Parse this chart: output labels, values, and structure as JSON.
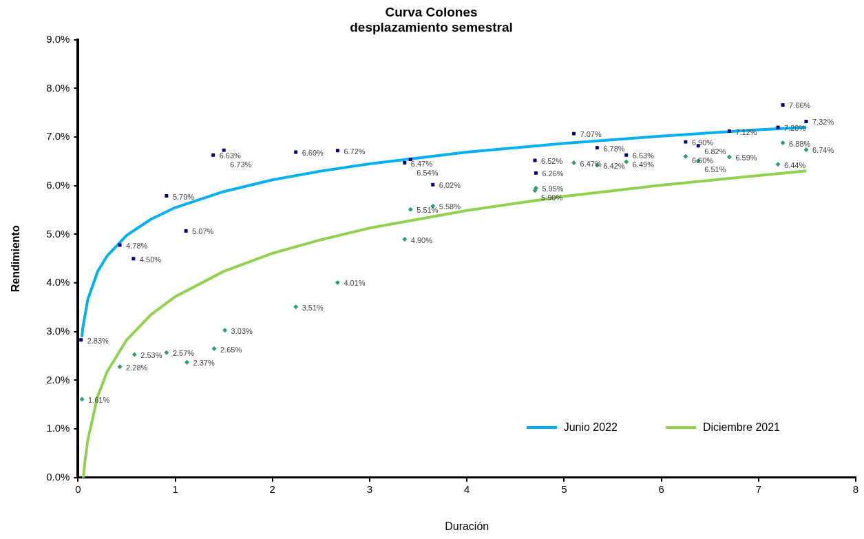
{
  "chart_data": {
    "type": "scatter",
    "title": "Curva Colones\ndesplazamiento semestral",
    "xlabel": "Duración",
    "ylabel": "Rendimiento",
    "xlim": [
      0,
      8
    ],
    "xticks": [
      0,
      1,
      2,
      3,
      4,
      5,
      6,
      7,
      8
    ],
    "ylim": [
      0,
      9
    ],
    "yticks": [
      {
        "value": 0,
        "label": "0.0%"
      },
      {
        "value": 1,
        "label": "1.0%"
      },
      {
        "value": 2,
        "label": "2.0%"
      },
      {
        "value": 3,
        "label": "3.0%"
      },
      {
        "value": 4,
        "label": "4.0%"
      },
      {
        "value": 5,
        "label": "5.0%"
      },
      {
        "value": 6,
        "label": "6.0%"
      },
      {
        "value": 7,
        "label": "7.0%"
      },
      {
        "value": 8,
        "label": "8.0%"
      },
      {
        "value": 9,
        "label": "9.0%"
      }
    ],
    "grid": false,
    "legend": "bottom right",
    "series": [
      {
        "type": "line",
        "name": "Junio 2022",
        "color": "#00b0f0",
        "marker": "none",
        "x": [
          0.04,
          0.05,
          0.1,
          0.2,
          0.3,
          0.5,
          0.75,
          1,
          1.5,
          2,
          2.5,
          3,
          4,
          5,
          6,
          7,
          7.48
        ],
        "values": [
          2.91,
          3.09,
          3.66,
          4.23,
          4.56,
          4.98,
          5.31,
          5.55,
          5.88,
          6.12,
          6.3,
          6.45,
          6.69,
          6.87,
          7.02,
          7.15,
          7.2
        ]
      },
      {
        "type": "line",
        "name": "Diciembre 2021",
        "color": "#92d050",
        "marker": "none",
        "x": [
          0.055,
          0.07,
          0.1,
          0.2,
          0.3,
          0.5,
          0.75,
          1,
          1.5,
          2,
          2.5,
          3,
          4,
          5,
          6,
          7,
          7.48
        ],
        "values": [
          0.0,
          0.32,
          0.77,
          1.66,
          2.18,
          2.83,
          3.35,
          3.72,
          4.24,
          4.61,
          4.89,
          5.13,
          5.49,
          5.78,
          6.01,
          6.21,
          6.3
        ]
      },
      {
        "type": "scatter",
        "color": "#000080",
        "marker": "square",
        "x": [
          0.03,
          0.43,
          0.57,
          0.91,
          1.11,
          1.39,
          1.5,
          2.24,
          2.67,
          3.36,
          3.42,
          3.65,
          4.7,
          4.71,
          5.1,
          5.34,
          5.64,
          6.25,
          6.38,
          6.7,
          7.2,
          7.25,
          7.49
        ],
        "values": [
          2.83,
          4.78,
          4.5,
          5.79,
          5.07,
          6.63,
          6.73,
          6.69,
          6.72,
          6.47,
          6.54,
          6.02,
          6.52,
          6.26,
          7.07,
          6.78,
          6.63,
          6.9,
          6.82,
          7.12,
          7.2,
          7.66,
          7.32
        ],
        "value_labels": [
          "2.83%",
          "4.78%",
          "4.50%",
          "5.79%",
          "5.07%",
          "6.63%",
          "6.73%",
          "6.69%",
          "6.72%",
          "6.47%",
          "6.54%",
          "6.02%",
          "6.52%",
          "6.26%",
          "7.07%",
          "6.78%",
          "6.63%",
          "6.90%",
          "6.82%",
          "7.12%",
          "7.20%",
          "7.66%",
          "7.32%"
        ]
      },
      {
        "type": "scatter",
        "color": "#2e9e6b",
        "marker": "diamond",
        "x": [
          0.04,
          0.43,
          0.58,
          0.91,
          1.12,
          1.4,
          1.51,
          2.24,
          2.67,
          3.36,
          3.42,
          3.65,
          4.71,
          4.7,
          5.1,
          5.34,
          5.64,
          6.25,
          6.38,
          6.7,
          7.2,
          7.25,
          7.49
        ],
        "values": [
          1.61,
          2.28,
          2.53,
          2.57,
          2.37,
          2.65,
          3.03,
          3.51,
          4.01,
          4.9,
          5.51,
          5.58,
          5.95,
          5.9,
          6.47,
          6.42,
          6.49,
          6.6,
          6.51,
          6.59,
          6.44,
          6.88,
          6.74
        ],
        "value_labels": [
          "1.61%",
          "2.28%",
          "2.53%",
          "2.57%",
          "2.37%",
          "2.65%",
          "3.03%",
          "3.51%",
          "4.01%",
          "4.90%",
          "5.51%",
          "5.58%",
          "5.95%",
          "5.90%",
          "6.47%",
          "6.42%",
          "6.49%",
          "6.60%",
          "6.51%",
          "6.59%",
          "6.44%",
          "6.88%",
          "6.74%"
        ]
      }
    ]
  }
}
